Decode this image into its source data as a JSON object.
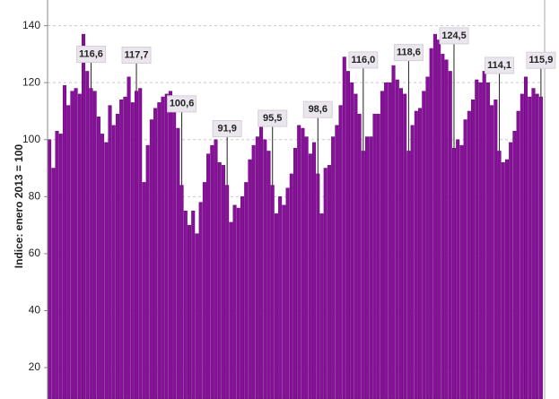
{
  "chart_data": {
    "type": "bar",
    "y_axis_label": "Indice: enero 2013 = 100",
    "color": "#8a0f9c",
    "ylim": [
      9,
      149
    ],
    "yticks": [
      20,
      40,
      60,
      80,
      100,
      120,
      140
    ],
    "grid": true,
    "categories": [
      null,
      null,
      null,
      null,
      null,
      null,
      null,
      null,
      null,
      null,
      null,
      null,
      null,
      null,
      null,
      null,
      null,
      null,
      null,
      null,
      null,
      null,
      null,
      null,
      null,
      null,
      null,
      null,
      null,
      null,
      null,
      null,
      null,
      null,
      null,
      null,
      null,
      null,
      null,
      null,
      null,
      null,
      null,
      null,
      null,
      null,
      null,
      null,
      null,
      null,
      null,
      null,
      null,
      null,
      null,
      null,
      null,
      null,
      null,
      null,
      null,
      null,
      null,
      null,
      null,
      null,
      null,
      null,
      null,
      null,
      null,
      null,
      null,
      null,
      null,
      null,
      null,
      null,
      null,
      null,
      null,
      null,
      null,
      null,
      null,
      null,
      null,
      null,
      null,
      null,
      null,
      null,
      null,
      null,
      null,
      null,
      null,
      null,
      null,
      null,
      null,
      null,
      null,
      null,
      null,
      null,
      null,
      null,
      null,
      null,
      null,
      null,
      null,
      null,
      null,
      null,
      null,
      null,
      null,
      null,
      null,
      null,
      null,
      null,
      null,
      null,
      null,
      null,
      null,
      null,
      null
    ],
    "values": [
      100,
      90,
      103,
      102,
      119,
      112,
      117,
      118,
      116,
      137,
      124,
      118,
      117,
      108,
      102,
      99,
      112,
      105,
      109,
      114,
      115,
      122,
      113,
      117,
      118,
      85,
      98,
      107,
      111,
      113,
      115,
      116,
      117,
      110,
      104,
      84,
      75,
      70,
      75,
      67,
      78,
      85,
      95,
      98,
      100,
      92,
      91,
      84,
      71,
      77,
      76,
      80,
      85,
      93,
      98,
      101,
      105,
      100,
      96,
      84,
      74,
      80,
      77,
      83,
      88,
      97,
      105,
      104,
      101,
      95,
      99,
      88,
      74,
      90,
      91,
      101,
      105,
      112,
      129,
      124,
      120,
      116,
      109,
      96,
      101,
      101,
      109,
      109,
      117,
      120,
      120,
      126,
      121,
      118,
      116,
      96,
      105,
      110,
      111,
      117,
      122,
      132,
      137,
      135,
      130,
      128,
      124,
      97,
      100,
      98,
      107,
      110,
      114,
      121,
      120,
      124,
      120,
      112,
      114,
      96,
      92,
      93,
      99,
      103,
      110,
      116,
      122,
      115,
      118,
      116,
      115
    ],
    "annotations": [
      {
        "label": "116,6",
        "value": 116.6
      },
      {
        "label": "117,7",
        "value": 117.7
      },
      {
        "label": "100,6",
        "value": 100.6
      },
      {
        "label": "91,9",
        "value": 91.9
      },
      {
        "label": "95,5",
        "value": 95.5
      },
      {
        "label": "98,6",
        "value": 98.6
      },
      {
        "label": "116,0",
        "value": 116.0
      },
      {
        "label": "118,6",
        "value": 118.6
      },
      {
        "label": "124,5",
        "value": 124.5
      },
      {
        "label": "114,1",
        "value": 114.1
      },
      {
        "label": "115,9",
        "value": 115.9
      }
    ]
  }
}
